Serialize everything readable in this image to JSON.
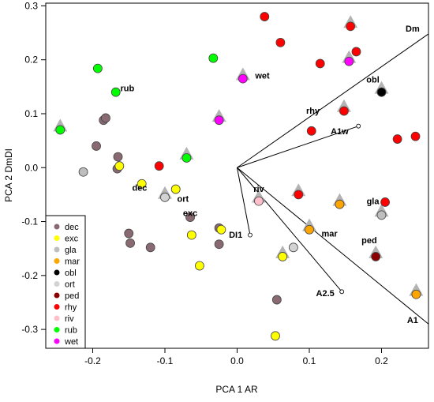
{
  "chart_data": {
    "type": "scatter",
    "xlabel": "PCA 1 AR",
    "ylabel": "PCA 2 DmDI",
    "xlim": [
      -0.265,
      0.265
    ],
    "ylim": [
      -0.335,
      0.305
    ],
    "xticks": [
      -0.2,
      -0.1,
      0.0,
      0.1,
      0.2
    ],
    "yticks": [
      -0.3,
      -0.2,
      -0.1,
      0.0,
      0.1,
      0.2,
      0.3
    ],
    "xtick_labels": [
      "-0.2",
      "-0.1",
      "0.0",
      "0.1",
      "0.2"
    ],
    "ytick_labels": [
      "-0.3",
      "-0.2",
      "-0.1",
      "0.0",
      "0.1",
      "0.2",
      "0.3"
    ],
    "grid": false,
    "legend_position": "bottom-left",
    "colors": {
      "dec": "#8a6a72",
      "exc": "#ffff00",
      "gla": "#bebebe",
      "mar": "#ffa500",
      "obl": "#000000",
      "ort": "#d3d3d3",
      "ped": "#8b0000",
      "rhy": "#ff0000",
      "riv": "#ffc0cb",
      "rub": "#00ff00",
      "wet": "#ff00ff"
    },
    "series": [
      {
        "name": "dec",
        "points": [
          [
            -0.185,
            0.088
          ],
          [
            -0.182,
            0.092
          ],
          [
            -0.195,
            0.04
          ],
          [
            -0.165,
            0.02
          ],
          [
            -0.166,
            -0.002
          ],
          [
            -0.15,
            -0.122
          ],
          [
            -0.148,
            -0.14
          ],
          [
            -0.12,
            -0.148
          ],
          [
            -0.065,
            -0.092
          ],
          [
            -0.025,
            -0.112
          ],
          [
            -0.025,
            -0.142
          ],
          [
            0.055,
            -0.245
          ]
        ]
      },
      {
        "name": "exc",
        "points": [
          [
            -0.163,
            0.003
          ],
          [
            -0.132,
            -0.03
          ],
          [
            -0.085,
            -0.04
          ],
          [
            -0.063,
            -0.125
          ],
          [
            -0.052,
            -0.182
          ],
          [
            -0.022,
            -0.115
          ],
          [
            0.063,
            -0.165
          ],
          [
            0.053,
            -0.312
          ]
        ]
      },
      {
        "name": "gla",
        "points": [
          [
            -0.213,
            -0.008
          ],
          [
            0.2,
            -0.088
          ]
        ]
      },
      {
        "name": "mar",
        "points": [
          [
            0.1,
            -0.115
          ],
          [
            0.142,
            -0.068
          ],
          [
            0.248,
            -0.235
          ]
        ]
      },
      {
        "name": "obl",
        "points": [
          [
            0.2,
            0.14
          ]
        ]
      },
      {
        "name": "ort",
        "points": [
          [
            -0.1,
            -0.055
          ],
          [
            0.078,
            -0.148
          ]
        ]
      },
      {
        "name": "ped",
        "points": [
          [
            0.192,
            -0.165
          ]
        ]
      },
      {
        "name": "rhy",
        "points": [
          [
            0.038,
            0.28
          ],
          [
            0.06,
            0.232
          ],
          [
            0.157,
            0.262
          ],
          [
            0.165,
            0.215
          ],
          [
            0.115,
            0.193
          ],
          [
            0.148,
            0.105
          ],
          [
            0.103,
            0.068
          ],
          [
            0.222,
            0.053
          ],
          [
            0.247,
            0.058
          ],
          [
            0.085,
            -0.05
          ],
          [
            0.205,
            -0.064
          ],
          [
            -0.108,
            0.003
          ]
        ]
      },
      {
        "name": "riv",
        "points": [
          [
            0.03,
            -0.062
          ]
        ]
      },
      {
        "name": "rub",
        "points": [
          [
            -0.193,
            0.184
          ],
          [
            -0.168,
            0.14
          ],
          [
            -0.033,
            0.203
          ],
          [
            -0.07,
            0.018
          ],
          [
            -0.245,
            0.07
          ]
        ]
      },
      {
        "name": "wet",
        "points": [
          [
            0.155,
            0.197
          ],
          [
            0.008,
            0.165
          ],
          [
            -0.025,
            0.088
          ]
        ]
      }
    ],
    "triangle_markers": [
      [
        0.157,
        0.268
      ],
      [
        0.155,
        0.203
      ],
      [
        0.008,
        0.171
      ],
      [
        0.2,
        0.146
      ],
      [
        0.148,
        0.112
      ],
      [
        -0.025,
        0.094
      ],
      [
        -0.245,
        0.076
      ],
      [
        -0.07,
        0.024
      ],
      [
        -0.1,
        -0.049
      ],
      [
        0.03,
        -0.056
      ],
      [
        0.085,
        -0.044
      ],
      [
        0.142,
        -0.062
      ],
      [
        0.2,
        -0.082
      ],
      [
        0.1,
        -0.109
      ],
      [
        0.063,
        -0.159
      ],
      [
        0.192,
        -0.159
      ],
      [
        0.248,
        -0.229
      ]
    ],
    "vectors": [
      {
        "label": "Dm",
        "end": [
          0.265,
          0.248
        ],
        "marker": false
      },
      {
        "label": "A1w",
        "end": [
          0.168,
          0.077
        ],
        "marker": true
      },
      {
        "label": "DI1",
        "end": [
          0.018,
          -0.125
        ],
        "marker": true
      },
      {
        "label": "A2.5",
        "end": [
          0.145,
          -0.23
        ],
        "marker": true
      },
      {
        "label": "A1",
        "end": [
          0.265,
          -0.29
        ],
        "marker": false
      }
    ],
    "group_labels": [
      {
        "text": "rub",
        "x": -0.152,
        "y": 0.142
      },
      {
        "text": "wet",
        "x": 0.035,
        "y": 0.165
      },
      {
        "text": "rhy",
        "x": 0.105,
        "y": 0.1
      },
      {
        "text": "obl",
        "x": 0.188,
        "y": 0.158
      },
      {
        "text": "dec",
        "x": -0.135,
        "y": -0.043
      },
      {
        "text": "ort",
        "x": -0.075,
        "y": -0.063
      },
      {
        "text": "exc",
        "x": -0.065,
        "y": -0.09
      },
      {
        "text": "riv",
        "x": 0.03,
        "y": -0.045
      },
      {
        "text": "gla",
        "x": 0.188,
        "y": -0.068
      },
      {
        "text": "mar",
        "x": 0.128,
        "y": -0.128
      },
      {
        "text": "ped",
        "x": 0.183,
        "y": -0.14
      },
      {
        "text": "Dm",
        "x": 0.243,
        "y": 0.252
      },
      {
        "text": "A1w",
        "x": 0.142,
        "y": 0.062
      },
      {
        "text": "DI1",
        "x": -0.002,
        "y": -0.13
      },
      {
        "text": "A2.5",
        "x": 0.122,
        "y": -0.238
      },
      {
        "text": "A1",
        "x": 0.243,
        "y": -0.288
      }
    ]
  }
}
